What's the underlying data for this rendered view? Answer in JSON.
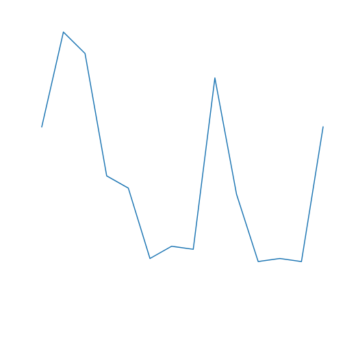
{
  "chart_data": {
    "type": "line",
    "x": [
      0,
      1,
      2,
      3,
      4,
      5,
      6,
      7,
      8,
      9,
      10,
      11,
      12,
      13
    ],
    "series": [
      {
        "values": [
          0.63,
          0.94,
          0.87,
          0.47,
          0.43,
          0.2,
          0.24,
          0.23,
          0.79,
          0.41,
          0.19,
          0.2,
          0.19,
          0.63
        ],
        "color": "#1f77b4"
      }
    ],
    "xlim": [
      0,
      13
    ],
    "ylim": [
      0,
      1
    ],
    "grid": false,
    "axes_visible": false
  }
}
